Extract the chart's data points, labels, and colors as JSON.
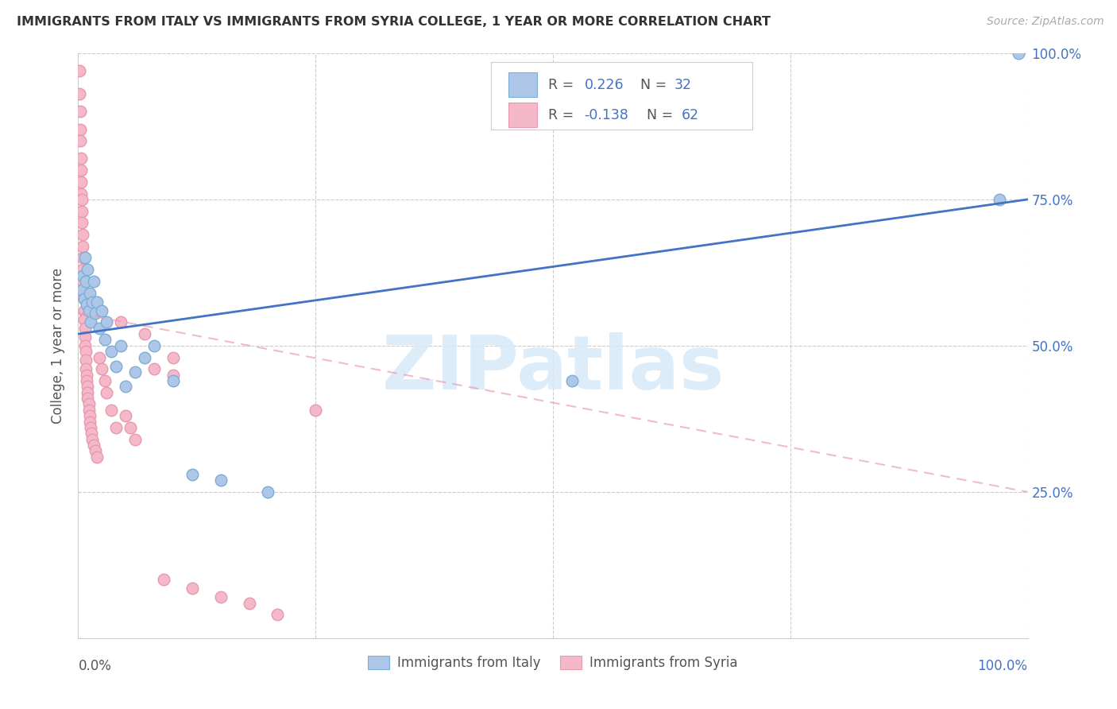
{
  "title": "IMMIGRANTS FROM ITALY VS IMMIGRANTS FROM SYRIA COLLEGE, 1 YEAR OR MORE CORRELATION CHART",
  "source": "Source: ZipAtlas.com",
  "ylabel": "College, 1 year or more",
  "legend_label_italy": "Immigrants from Italy",
  "legend_label_syria": "Immigrants from Syria",
  "italy_color": "#aec6e8",
  "syria_color": "#f4b8c8",
  "italy_edge": "#7bafd4",
  "syria_edge": "#e898b0",
  "trendline_italy_color": "#4472c4",
  "trendline_syria_color": "#e898b0",
  "italy_r_text": "R =  0.226",
  "italy_n_text": "N = 32",
  "syria_r_text": "R = -0.138",
  "syria_n_text": "N = 62",
  "legend_text_color": "#4472c4",
  "legend_r_color_italy": "#4472c4",
  "legend_r_color_syria": "#4472c4",
  "italy_x": [
    0.004,
    0.005,
    0.006,
    0.007,
    0.008,
    0.009,
    0.01,
    0.011,
    0.012,
    0.013,
    0.015,
    0.016,
    0.018,
    0.02,
    0.022,
    0.025,
    0.028,
    0.03,
    0.035,
    0.04,
    0.045,
    0.05,
    0.06,
    0.07,
    0.08,
    0.1,
    0.12,
    0.15,
    0.2,
    0.52,
    0.97,
    0.99
  ],
  "italy_y": [
    0.595,
    0.62,
    0.58,
    0.65,
    0.61,
    0.57,
    0.63,
    0.56,
    0.59,
    0.54,
    0.575,
    0.61,
    0.555,
    0.575,
    0.53,
    0.56,
    0.51,
    0.54,
    0.49,
    0.465,
    0.5,
    0.43,
    0.455,
    0.48,
    0.5,
    0.44,
    0.28,
    0.27,
    0.25,
    0.44,
    0.75,
    1.0
  ],
  "syria_x": [
    0.001,
    0.001,
    0.002,
    0.002,
    0.002,
    0.003,
    0.003,
    0.003,
    0.003,
    0.004,
    0.004,
    0.004,
    0.005,
    0.005,
    0.005,
    0.005,
    0.005,
    0.005,
    0.006,
    0.006,
    0.006,
    0.007,
    0.007,
    0.007,
    0.008,
    0.008,
    0.008,
    0.009,
    0.009,
    0.01,
    0.01,
    0.01,
    0.011,
    0.011,
    0.012,
    0.012,
    0.013,
    0.014,
    0.015,
    0.016,
    0.018,
    0.02,
    0.022,
    0.025,
    0.028,
    0.03,
    0.035,
    0.04,
    0.045,
    0.05,
    0.055,
    0.06,
    0.07,
    0.08,
    0.09,
    0.1,
    0.12,
    0.15,
    0.18,
    0.21,
    0.25,
    0.1
  ],
  "syria_y": [
    0.97,
    0.93,
    0.9,
    0.87,
    0.85,
    0.82,
    0.8,
    0.78,
    0.76,
    0.75,
    0.73,
    0.71,
    0.69,
    0.67,
    0.65,
    0.63,
    0.61,
    0.59,
    0.58,
    0.56,
    0.545,
    0.53,
    0.515,
    0.5,
    0.49,
    0.475,
    0.46,
    0.45,
    0.44,
    0.43,
    0.42,
    0.41,
    0.4,
    0.39,
    0.38,
    0.37,
    0.36,
    0.35,
    0.34,
    0.33,
    0.32,
    0.31,
    0.48,
    0.46,
    0.44,
    0.42,
    0.39,
    0.36,
    0.54,
    0.38,
    0.36,
    0.34,
    0.52,
    0.46,
    0.1,
    0.48,
    0.085,
    0.07,
    0.06,
    0.04,
    0.39,
    0.45
  ],
  "italy_trend": [
    0.0,
    0.52,
    1.0,
    0.75
  ],
  "syria_trend": [
    0.0,
    0.555,
    1.0,
    0.25
  ],
  "xlim": [
    0,
    1
  ],
  "ylim": [
    0,
    1
  ],
  "grid_yticks": [
    0.25,
    0.5,
    0.75,
    1.0
  ],
  "grid_xticks": [
    0.25,
    0.5,
    0.75,
    1.0
  ],
  "right_ytick_labels": [
    "25.0%",
    "50.0%",
    "75.0%",
    "100.0%"
  ],
  "grid_color": "#cccccc",
  "watermark_text": "ZIPatlas",
  "watermark_color": "#d6e9f8",
  "title_color": "#333333",
  "axis_label_color": "#555555",
  "right_tick_color": "#4472c4",
  "marker_size": 110,
  "marker_lw": 1.0
}
